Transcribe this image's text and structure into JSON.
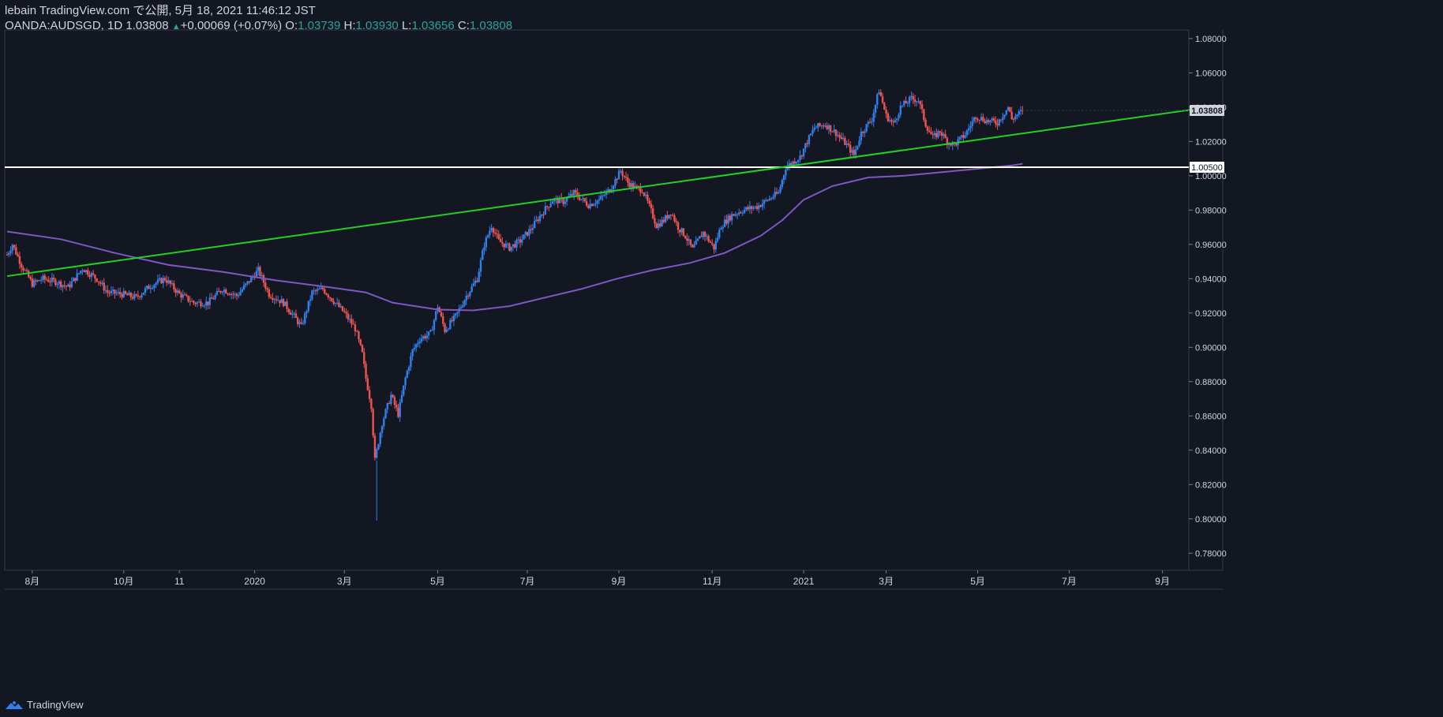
{
  "header": {
    "line1": "lebain TradingView.com で公開, 5月 18, 2021 11:46:12 JST",
    "symbol": "OANDA:AUDSGD, 1D",
    "last": "1.03808",
    "change_arrow": "▲",
    "change": "+0.00069 (+0.07%)",
    "o_label": "O:",
    "o": "1.03739",
    "h_label": "H:",
    "h": "1.03930",
    "l_label": "L:",
    "l": "1.03656",
    "c_label": "C:",
    "c": "1.03808"
  },
  "footer": {
    "brand": "TradingView",
    "logo_icon": "tradingview-logo-icon"
  },
  "colors": {
    "background": "#131722",
    "up": "#2f80ed",
    "down": "#ef5350",
    "trendline": "#22d022",
    "ma": "#7e57c2",
    "hline": "#ffffff",
    "axis_text": "#d1d4dc"
  },
  "chart_data": {
    "type": "candlestick",
    "symbol": "OANDA:AUDSGD",
    "interval": "1D",
    "ylim": [
      0.77,
      1.085
    ],
    "yticks": [
      "1.08000",
      "1.06000",
      "1.04000",
      "1.02000",
      "1.00000",
      "0.98000",
      "0.96000",
      "0.94000",
      "0.92000",
      "0.90000",
      "0.88000",
      "0.86000",
      "0.84000",
      "0.82000",
      "0.80000",
      "0.78000"
    ],
    "ytick_values": [
      1.08,
      1.06,
      1.04,
      1.02,
      1.0,
      0.98,
      0.96,
      0.94,
      0.92,
      0.9,
      0.88,
      0.86,
      0.84,
      0.82,
      0.8,
      0.78
    ],
    "xlim": [
      0,
      660
    ],
    "xticks": [
      {
        "label": "8月",
        "x": 14
      },
      {
        "label": "10月",
        "x": 65
      },
      {
        "label": "11",
        "x": 96
      },
      {
        "label": "2020",
        "x": 138
      },
      {
        "label": "3月",
        "x": 188
      },
      {
        "label": "5月",
        "x": 240
      },
      {
        "label": "7月",
        "x": 290
      },
      {
        "label": "9月",
        "x": 341
      },
      {
        "label": "11月",
        "x": 393
      },
      {
        "label": "2021",
        "x": 444
      },
      {
        "label": "3月",
        "x": 490
      },
      {
        "label": "5月",
        "x": 541
      },
      {
        "label": "7月",
        "x": 592
      },
      {
        "label": "9月",
        "x": 644
      }
    ],
    "last_price": 1.03808,
    "last_price_label": "1.03808",
    "horizontal_line": {
      "price": 1.005,
      "label": "1.00500"
    },
    "trendline": {
      "x1": 0,
      "y1": 0.9415,
      "x2": 660,
      "y2": 1.0385
    },
    "anchors": [
      [
        0,
        0.954
      ],
      [
        3,
        0.96
      ],
      [
        8,
        0.948
      ],
      [
        14,
        0.937
      ],
      [
        20,
        0.94
      ],
      [
        28,
        0.938
      ],
      [
        34,
        0.935
      ],
      [
        42,
        0.946
      ],
      [
        50,
        0.94
      ],
      [
        56,
        0.932
      ],
      [
        64,
        0.931
      ],
      [
        72,
        0.929
      ],
      [
        80,
        0.936
      ],
      [
        88,
        0.94
      ],
      [
        96,
        0.931
      ],
      [
        104,
        0.926
      ],
      [
        112,
        0.926
      ],
      [
        120,
        0.934
      ],
      [
        128,
        0.93
      ],
      [
        136,
        0.94
      ],
      [
        140,
        0.945
      ],
      [
        146,
        0.931
      ],
      [
        154,
        0.926
      ],
      [
        160,
        0.918
      ],
      [
        164,
        0.912
      ],
      [
        170,
        0.932
      ],
      [
        176,
        0.934
      ],
      [
        182,
        0.927
      ],
      [
        188,
        0.92
      ],
      [
        194,
        0.911
      ],
      [
        198,
        0.896
      ],
      [
        200,
        0.882
      ],
      [
        203,
        0.866
      ],
      [
        205,
        0.834
      ],
      [
        209,
        0.856
      ],
      [
        214,
        0.872
      ],
      [
        218,
        0.861
      ],
      [
        222,
        0.882
      ],
      [
        226,
        0.898
      ],
      [
        230,
        0.905
      ],
      [
        236,
        0.908
      ],
      [
        240,
        0.924
      ],
      [
        244,
        0.91
      ],
      [
        250,
        0.918
      ],
      [
        256,
        0.93
      ],
      [
        262,
        0.94
      ],
      [
        266,
        0.96
      ],
      [
        270,
        0.971
      ],
      [
        274,
        0.962
      ],
      [
        280,
        0.958
      ],
      [
        286,
        0.962
      ],
      [
        292,
        0.969
      ],
      [
        298,
        0.978
      ],
      [
        304,
        0.986
      ],
      [
        310,
        0.985
      ],
      [
        316,
        0.99
      ],
      [
        324,
        0.983
      ],
      [
        330,
        0.986
      ],
      [
        336,
        0.992
      ],
      [
        342,
        1.003
      ],
      [
        346,
        0.996
      ],
      [
        350,
        0.993
      ],
      [
        354,
        0.992
      ],
      [
        358,
        0.982
      ],
      [
        362,
        0.971
      ],
      [
        366,
        0.974
      ],
      [
        370,
        0.979
      ],
      [
        374,
        0.97
      ],
      [
        378,
        0.965
      ],
      [
        382,
        0.957
      ],
      [
        388,
        0.967
      ],
      [
        394,
        0.958
      ],
      [
        398,
        0.971
      ],
      [
        404,
        0.977
      ],
      [
        410,
        0.98
      ],
      [
        418,
        0.982
      ],
      [
        424,
        0.986
      ],
      [
        430,
        0.99
      ],
      [
        434,
        1.005
      ],
      [
        438,
        1.008
      ],
      [
        442,
        1.011
      ],
      [
        446,
        1.02
      ],
      [
        450,
        1.028
      ],
      [
        456,
        1.03
      ],
      [
        462,
        1.025
      ],
      [
        468,
        1.018
      ],
      [
        472,
        1.012
      ],
      [
        476,
        1.025
      ],
      [
        482,
        1.033
      ],
      [
        486,
        1.05
      ],
      [
        490,
        1.035
      ],
      [
        494,
        1.03
      ],
      [
        498,
        1.04
      ],
      [
        504,
        1.045
      ],
      [
        508,
        1.044
      ],
      [
        512,
        1.03
      ],
      [
        516,
        1.022
      ],
      [
        520,
        1.026
      ],
      [
        524,
        1.02
      ],
      [
        528,
        1.018
      ],
      [
        534,
        1.024
      ],
      [
        540,
        1.035
      ],
      [
        546,
        1.032
      ],
      [
        552,
        1.031
      ],
      [
        558,
        1.04
      ],
      [
        560,
        1.033
      ],
      [
        566,
        1.038
      ]
    ],
    "ma_200": [
      [
        0,
        0.9675
      ],
      [
        30,
        0.963
      ],
      [
        60,
        0.955
      ],
      [
        90,
        0.948
      ],
      [
        120,
        0.944
      ],
      [
        150,
        0.939
      ],
      [
        180,
        0.935
      ],
      [
        200,
        0.932
      ],
      [
        215,
        0.926
      ],
      [
        240,
        0.922
      ],
      [
        260,
        0.9215
      ],
      [
        280,
        0.924
      ],
      [
        300,
        0.929
      ],
      [
        320,
        0.934
      ],
      [
        340,
        0.94
      ],
      [
        360,
        0.945
      ],
      [
        380,
        0.949
      ],
      [
        400,
        0.955
      ],
      [
        420,
        0.965
      ],
      [
        432,
        0.974
      ],
      [
        444,
        0.986
      ],
      [
        460,
        0.994
      ],
      [
        480,
        0.999
      ],
      [
        500,
        1.0
      ],
      [
        520,
        1.002
      ],
      [
        540,
        1.004
      ],
      [
        560,
        1.006
      ],
      [
        566,
        1.007
      ]
    ]
  }
}
